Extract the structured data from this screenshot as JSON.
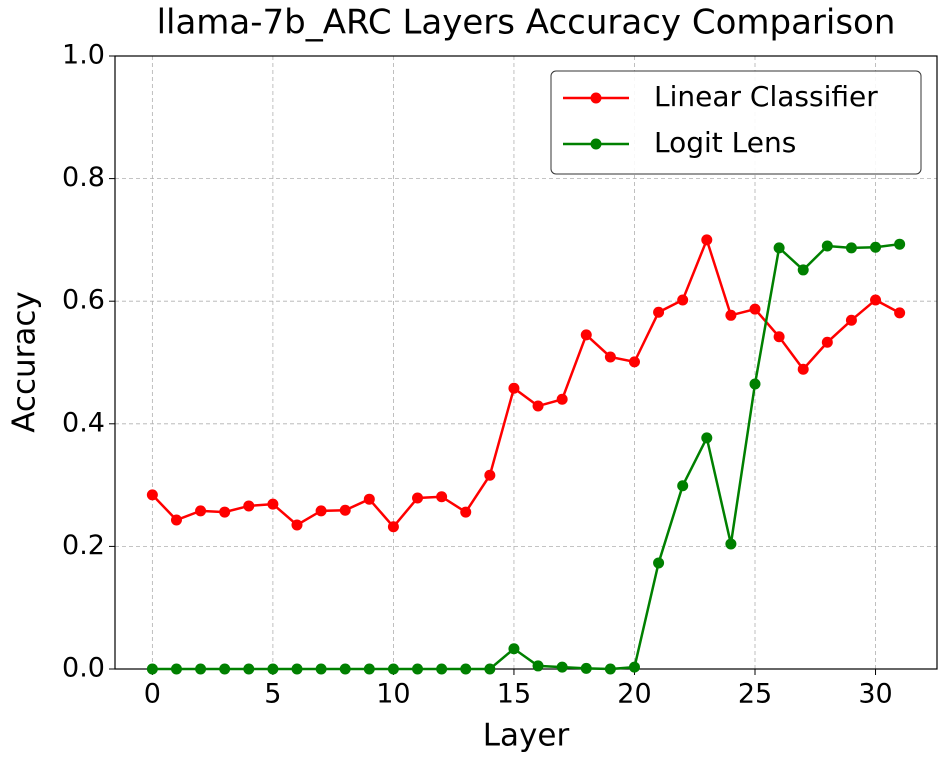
{
  "chart_data": {
    "type": "line",
    "title": "llama-7b_ARC Layers Accuracy Comparison",
    "x_label": "Layer",
    "y_label": "Accuracy",
    "x": [
      0,
      1,
      2,
      3,
      4,
      5,
      6,
      7,
      8,
      9,
      10,
      11,
      12,
      13,
      14,
      15,
      16,
      17,
      18,
      19,
      20,
      21,
      22,
      23,
      24,
      25,
      26,
      27,
      28,
      29,
      30,
      31
    ],
    "series": [
      {
        "name": "Linear Classifier",
        "color": "#ff0000",
        "values": [
          0.284,
          0.243,
          0.258,
          0.256,
          0.266,
          0.269,
          0.235,
          0.258,
          0.259,
          0.277,
          0.232,
          0.279,
          0.281,
          0.256,
          0.316,
          0.458,
          0.429,
          0.44,
          0.545,
          0.509,
          0.501,
          0.582,
          0.602,
          0.7,
          0.577,
          0.587,
          0.542,
          0.489,
          0.533,
          0.569,
          0.602,
          0.581
        ]
      },
      {
        "name": "Logit Lens",
        "color": "#008000",
        "values": [
          0,
          0,
          0,
          0,
          0,
          0,
          0,
          0,
          0,
          0,
          0,
          0,
          0,
          0,
          0,
          0.033,
          0.005,
          0.003,
          0.001,
          0,
          0.003,
          0.173,
          0.299,
          0.377,
          0.204,
          0.465,
          0.687,
          0.651,
          0.69,
          0.687,
          0.688,
          0.693
        ]
      }
    ],
    "xlim": [
      -1.55,
      32.55
    ],
    "xticks": [
      0,
      5,
      10,
      15,
      20,
      25,
      30
    ],
    "ylim": [
      0,
      1
    ],
    "yticks": [
      {
        "value": 0,
        "label": "0.0"
      },
      {
        "value": 0.2,
        "label": "0.2"
      },
      {
        "value": 0.4,
        "label": "0.4"
      },
      {
        "value": 0.6,
        "label": "0.6"
      },
      {
        "value": 0.8,
        "label": "0.8"
      },
      {
        "value": 1,
        "label": "1.0"
      }
    ],
    "grid": true,
    "legend": "upper right"
  }
}
